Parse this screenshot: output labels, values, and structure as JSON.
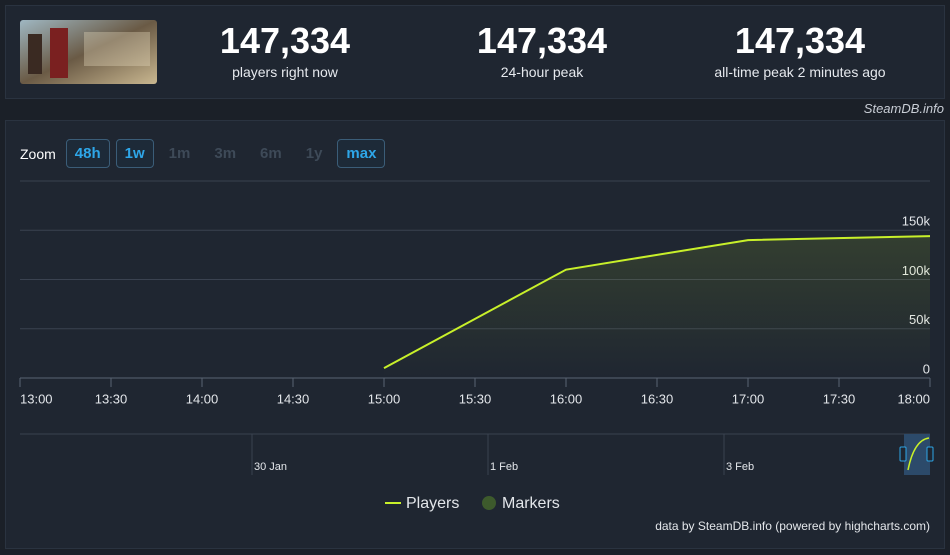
{
  "header": {
    "stats": [
      {
        "value": "147,334",
        "label": "players right now"
      },
      {
        "value": "147,334",
        "label": "24-hour peak"
      },
      {
        "value": "147,334",
        "label": "all-time peak 2 minutes ago"
      }
    ],
    "source": "SteamDB.info"
  },
  "zoom": {
    "label": "Zoom",
    "buttons": [
      {
        "text": "48h",
        "enabled": true
      },
      {
        "text": "1w",
        "enabled": true
      },
      {
        "text": "1m",
        "enabled": false
      },
      {
        "text": "3m",
        "enabled": false
      },
      {
        "text": "6m",
        "enabled": false
      },
      {
        "text": "1y",
        "enabled": false
      },
      {
        "text": "max",
        "enabled": true
      }
    ]
  },
  "chart_data": {
    "type": "line",
    "x": [
      15,
      16,
      17,
      18
    ],
    "series": [
      {
        "name": "Players",
        "color": "#c8f02a",
        "values": [
          10000,
          110000,
          140000,
          144000
        ]
      }
    ],
    "markers_legend": {
      "name": "Markers",
      "color": "#3d5a2c"
    },
    "xlim": [
      13,
      18
    ],
    "xticks": [
      {
        "value": 13,
        "label": "13:00"
      },
      {
        "value": 13.5,
        "label": "13:30"
      },
      {
        "value": 14,
        "label": "14:00"
      },
      {
        "value": 14.5,
        "label": "14:30"
      },
      {
        "value": 15,
        "label": "15:00"
      },
      {
        "value": 15.5,
        "label": "15:30"
      },
      {
        "value": 16,
        "label": "16:00"
      },
      {
        "value": 16.5,
        "label": "16:30"
      },
      {
        "value": 17,
        "label": "17:00"
      },
      {
        "value": 17.5,
        "label": "17:30"
      },
      {
        "value": 18,
        "label": "18:00"
      }
    ],
    "ylim": [
      0,
      200000
    ],
    "yticks": [
      0,
      {
        "value": 50000,
        "label": "50k"
      },
      {
        "value": 100000,
        "label": "100k"
      },
      {
        "value": 150000,
        "label": "150k"
      }
    ],
    "grid": true,
    "navigator_labels": [
      "30 Jan",
      "1 Feb",
      "3 Feb"
    ],
    "credit": "data by SteamDB.info (powered by highcharts.com)"
  }
}
